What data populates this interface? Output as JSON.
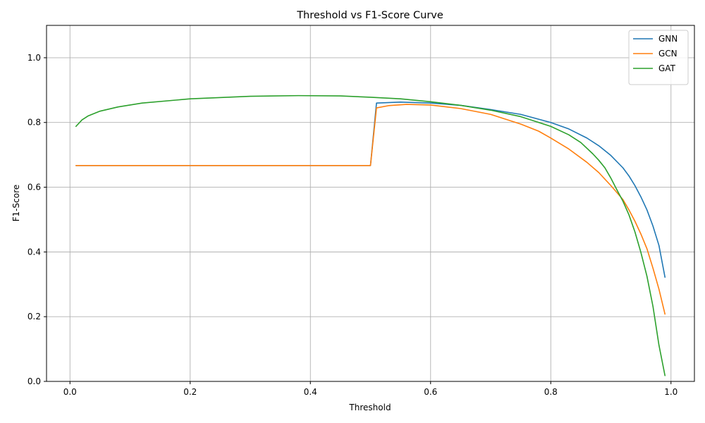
{
  "chart_data": {
    "type": "line",
    "title": "Threshold vs F1-Score Curve",
    "xlabel": "Threshold",
    "ylabel": "F1-Score",
    "xlim": [
      -0.039,
      1.039
    ],
    "ylim": [
      0.0,
      1.1
    ],
    "xticks": [
      0.0,
      0.2,
      0.4,
      0.6,
      0.8,
      1.0
    ],
    "xtick_labels": [
      "0.0",
      "0.2",
      "0.4",
      "0.6",
      "0.8",
      "1.0"
    ],
    "yticks": [
      0.0,
      0.2,
      0.4,
      0.6,
      0.8,
      1.0
    ],
    "ytick_labels": [
      "0.0",
      "0.2",
      "0.4",
      "0.6",
      "0.8",
      "1.0"
    ],
    "grid": true,
    "legend_position": "top-right",
    "series": [
      {
        "name": "GNN",
        "color": "#1f77b4",
        "points": [
          [
            0.01,
            0.667
          ],
          [
            0.5,
            0.667
          ],
          [
            0.51,
            0.86
          ],
          [
            0.55,
            0.863
          ],
          [
            0.6,
            0.86
          ],
          [
            0.65,
            0.853
          ],
          [
            0.7,
            0.84
          ],
          [
            0.75,
            0.825
          ],
          [
            0.8,
            0.8
          ],
          [
            0.83,
            0.78
          ],
          [
            0.86,
            0.752
          ],
          [
            0.88,
            0.728
          ],
          [
            0.9,
            0.698
          ],
          [
            0.92,
            0.66
          ],
          [
            0.93,
            0.635
          ],
          [
            0.94,
            0.605
          ],
          [
            0.95,
            0.57
          ],
          [
            0.96,
            0.53
          ],
          [
            0.97,
            0.48
          ],
          [
            0.98,
            0.42
          ],
          [
            0.99,
            0.322
          ]
        ]
      },
      {
        "name": "GCN",
        "color": "#ff7f0e",
        "points": [
          [
            0.01,
            0.667
          ],
          [
            0.5,
            0.667
          ],
          [
            0.51,
            0.845
          ],
          [
            0.53,
            0.852
          ],
          [
            0.56,
            0.856
          ],
          [
            0.6,
            0.854
          ],
          [
            0.65,
            0.843
          ],
          [
            0.7,
            0.825
          ],
          [
            0.75,
            0.795
          ],
          [
            0.78,
            0.773
          ],
          [
            0.8,
            0.752
          ],
          [
            0.83,
            0.718
          ],
          [
            0.86,
            0.677
          ],
          [
            0.88,
            0.645
          ],
          [
            0.9,
            0.605
          ],
          [
            0.92,
            0.562
          ],
          [
            0.93,
            0.53
          ],
          [
            0.94,
            0.495
          ],
          [
            0.95,
            0.455
          ],
          [
            0.96,
            0.41
          ],
          [
            0.97,
            0.35
          ],
          [
            0.98,
            0.285
          ],
          [
            0.99,
            0.208
          ]
        ]
      },
      {
        "name": "GAT",
        "color": "#2ca02c",
        "points": [
          [
            0.01,
            0.788
          ],
          [
            0.02,
            0.808
          ],
          [
            0.03,
            0.82
          ],
          [
            0.05,
            0.835
          ],
          [
            0.08,
            0.848
          ],
          [
            0.12,
            0.86
          ],
          [
            0.2,
            0.873
          ],
          [
            0.3,
            0.881
          ],
          [
            0.38,
            0.883
          ],
          [
            0.45,
            0.882
          ],
          [
            0.5,
            0.878
          ],
          [
            0.55,
            0.873
          ],
          [
            0.6,
            0.864
          ],
          [
            0.65,
            0.853
          ],
          [
            0.7,
            0.838
          ],
          [
            0.75,
            0.818
          ],
          [
            0.8,
            0.788
          ],
          [
            0.83,
            0.762
          ],
          [
            0.85,
            0.738
          ],
          [
            0.87,
            0.703
          ],
          [
            0.88,
            0.683
          ],
          [
            0.89,
            0.66
          ],
          [
            0.9,
            0.628
          ],
          [
            0.91,
            0.592
          ],
          [
            0.92,
            0.557
          ],
          [
            0.93,
            0.515
          ],
          [
            0.94,
            0.462
          ],
          [
            0.95,
            0.398
          ],
          [
            0.96,
            0.325
          ],
          [
            0.97,
            0.232
          ],
          [
            0.98,
            0.112
          ],
          [
            0.99,
            0.018
          ]
        ]
      }
    ]
  }
}
